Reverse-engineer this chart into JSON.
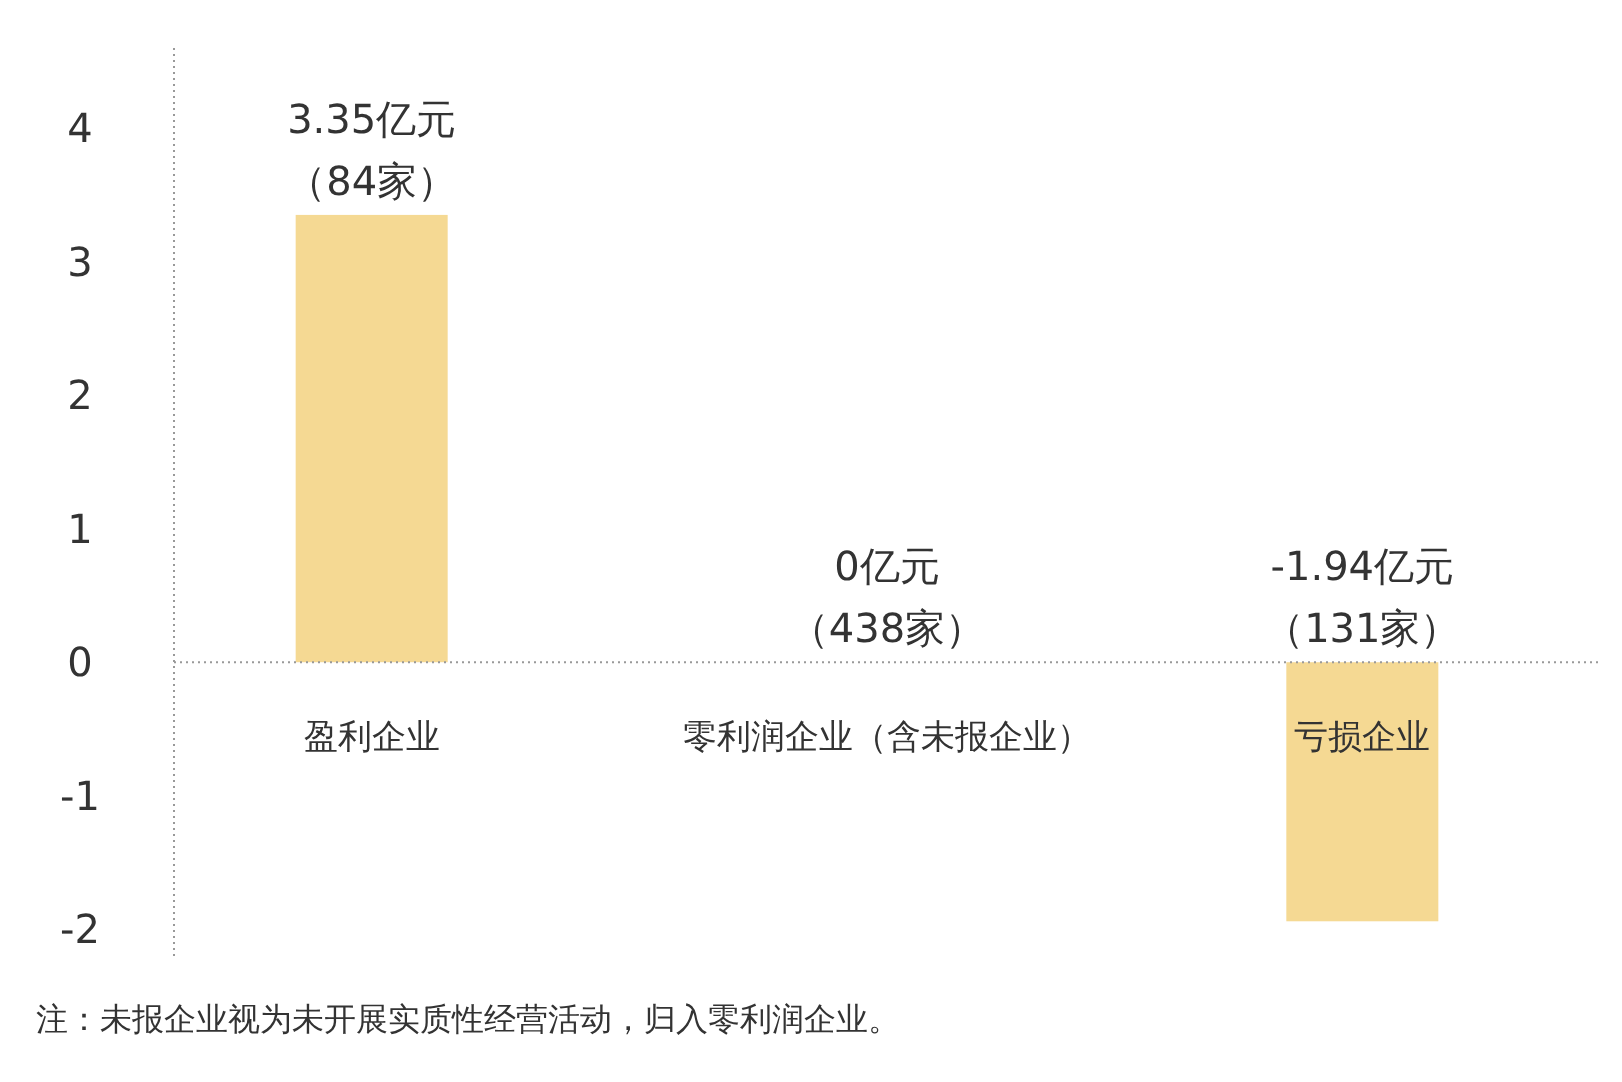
{
  "chart_data": {
    "type": "bar",
    "categories": [
      "盈利企业",
      "零利润企业（含未报企业）",
      "亏损企业"
    ],
    "values": [
      3.35,
      0,
      -1.94
    ],
    "color": "#f5d993",
    "value_labels": [
      "3.35亿元（84家）",
      "0亿元（438家）",
      "-1.94亿元（131家）"
    ],
    "ylim": [
      -2.2,
      4.6
    ],
    "yticks": [
      -2,
      -1,
      0,
      1,
      2,
      3,
      4
    ],
    "annotations": [
      "注：未报企业视为未开展实质性经营活动，归入零利润企业。"
    ]
  }
}
